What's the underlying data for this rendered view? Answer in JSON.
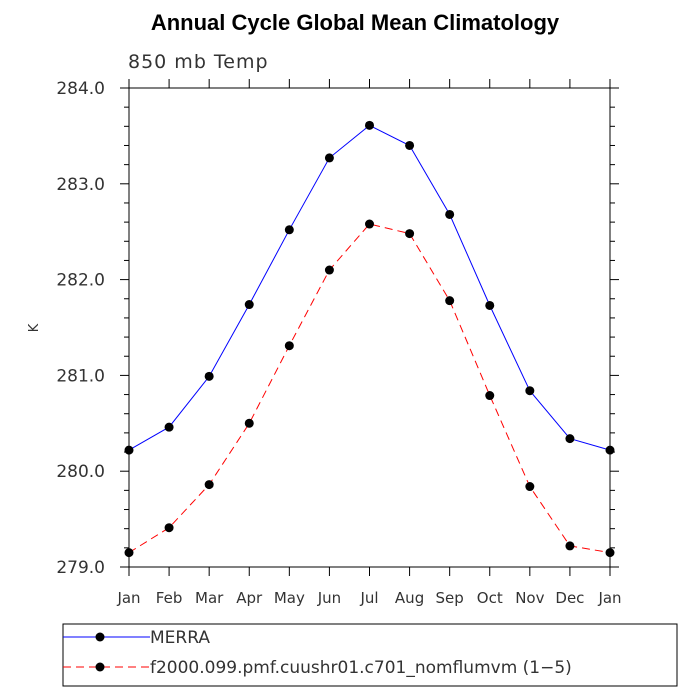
{
  "chart_data": {
    "type": "line",
    "title": "Annual Cycle Global Mean Climatology",
    "subtitle": "850 mb Temp",
    "xlabel": "",
    "ylabel": "K",
    "categories": [
      "Jan",
      "Feb",
      "Mar",
      "Apr",
      "May",
      "Jun",
      "Jul",
      "Aug",
      "Sep",
      "Oct",
      "Nov",
      "Dec",
      "Jan"
    ],
    "ylim": [
      279.0,
      284.0
    ],
    "yticks": [
      "279.0",
      "280.0",
      "281.0",
      "282.0",
      "283.0",
      "284.0"
    ],
    "grid": false,
    "legend_position": "bottom",
    "series": [
      {
        "name": "MERRA",
        "color": "#0000ff",
        "line_style": "solid",
        "marker": "filled-circle",
        "values": [
          280.22,
          280.46,
          280.99,
          281.74,
          282.52,
          283.27,
          283.61,
          283.4,
          282.68,
          281.73,
          280.84,
          280.34,
          280.22
        ]
      },
      {
        "name": "f2000.099.pmf.cuushr01.c701_nomflumvm (1−5)",
        "color": "#ff0000",
        "line_style": "dashed",
        "marker": "filled-circle",
        "values": [
          279.15,
          279.41,
          279.86,
          280.5,
          281.31,
          282.1,
          282.58,
          282.48,
          281.78,
          280.79,
          279.84,
          279.22,
          279.15
        ]
      }
    ]
  }
}
